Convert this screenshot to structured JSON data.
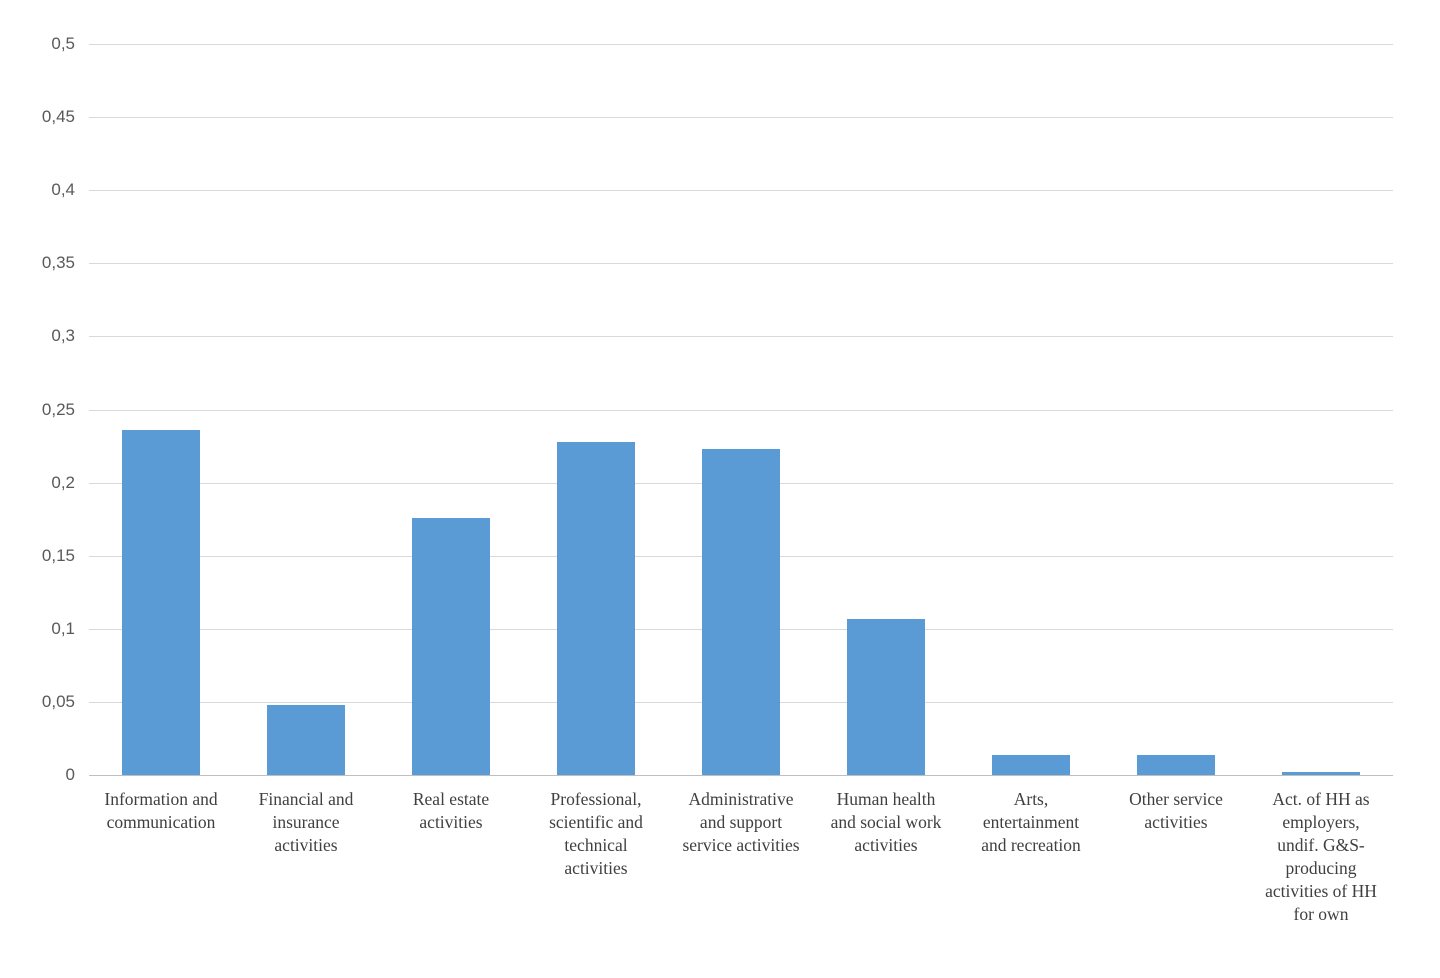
{
  "chart_data": {
    "type": "bar",
    "categories": [
      "Information and communication",
      "Financial and insurance activities",
      "Real estate activities",
      "Professional, scientific and technical activities",
      "Administrative and support service activities",
      "Human health and social work activities",
      "Arts, entertainment and recreation",
      "Other service activities",
      "Act. of HH as employers, undif. G&S-producing activities of HH for own"
    ],
    "category_lines": [
      [
        "Information and",
        "communication"
      ],
      [
        "Financial and",
        "insurance",
        "activities"
      ],
      [
        "Real estate",
        "activities"
      ],
      [
        "Professional,",
        "scientific and",
        "technical",
        "activities"
      ],
      [
        "Administrative",
        "and support",
        "service activities"
      ],
      [
        "Human health",
        "and social work",
        "activities"
      ],
      [
        "Arts,",
        "entertainment",
        "and recreation"
      ],
      [
        "Other service",
        "activities"
      ],
      [
        "Act. of HH as",
        "employers,",
        "undif. G&S-",
        "producing",
        "activities of HH",
        "for own"
      ]
    ],
    "values": [
      0.236,
      0.048,
      0.176,
      0.228,
      0.223,
      0.107,
      0.014,
      0.014,
      0.002
    ],
    "ylim": [
      0,
      0.5
    ],
    "ytick_step": 0.05,
    "ytick_labels": [
      "0",
      "0,05",
      "0,1",
      "0,15",
      "0,2",
      "0,25",
      "0,3",
      "0,35",
      "0,4",
      "0,45",
      "0,5"
    ],
    "grid": true,
    "legend": "none",
    "colors": {
      "bar": "#5b9bd5",
      "gridline": "#d9d9d9",
      "axis_line": "#bfbfbf",
      "ytick_label": "#595959",
      "category_label": "#404040",
      "background": "#ffffff"
    }
  }
}
